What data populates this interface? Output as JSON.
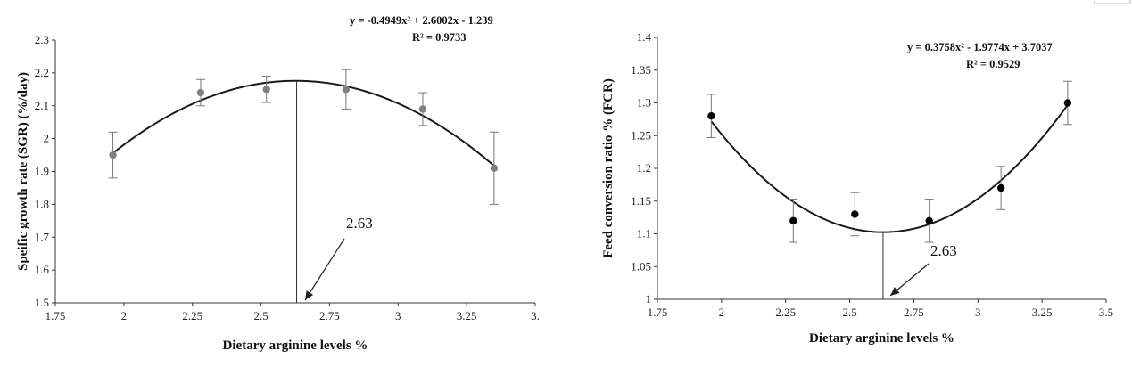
{
  "chart_data": [
    {
      "type": "scatter",
      "xlabel": "Dietary arginine levels %",
      "ylabel": "Speific growth rate (SGR) (%/day)",
      "xlim": [
        1.75,
        3.5
      ],
      "ylim": [
        1.5,
        2.3
      ],
      "x_ticks": [
        "1.75",
        "2",
        "2.25",
        "2.5",
        "2.75",
        "3",
        "3.25",
        "3."
      ],
      "y_ticks": [
        "1.5",
        "1.6",
        "1.7",
        "1.8",
        "1.9",
        "2",
        "2.1",
        "2.2",
        "2.3"
      ],
      "points": [
        {
          "x": 1.96,
          "y": 1.95,
          "err": 0.07
        },
        {
          "x": 2.28,
          "y": 2.14,
          "err": 0.04
        },
        {
          "x": 2.52,
          "y": 2.15,
          "err": 0.04
        },
        {
          "x": 2.81,
          "y": 2.15,
          "err": 0.06
        },
        {
          "x": 3.09,
          "y": 2.09,
          "err": 0.05
        },
        {
          "x": 3.35,
          "y": 1.91,
          "err": 0.11
        }
      ],
      "trendline": {
        "a": -0.4949,
        "b": 2.6002,
        "c": -1.2394,
        "x_range": [
          1.96,
          3.35
        ]
      },
      "equation": "y = -0.4949x² + 2.6002x - 1.239",
      "r_squared": "R² = 0.9733",
      "optimum_x": 2.63,
      "annotation": "2.63",
      "marker_color": "#808080",
      "line_color": "#1a1a1a"
    },
    {
      "type": "scatter",
      "xlabel": "Dietary arginine levels %",
      "ylabel": "Feed conversion ratio % (FCR)",
      "xlim": [
        1.75,
        3.5
      ],
      "ylim": [
        1.0,
        1.4
      ],
      "x_ticks": [
        "1.75",
        "2",
        "2.25",
        "2.5",
        "2.75",
        "3",
        "3.25",
        "3.5"
      ],
      "y_ticks": [
        "1",
        "1.05",
        "1.1",
        "1.15",
        "1.2",
        "1.25",
        "1.3",
        "1.35",
        "1.4"
      ],
      "points": [
        {
          "x": 1.96,
          "y": 1.28,
          "err": 0.033
        },
        {
          "x": 2.28,
          "y": 1.12,
          "err": 0.033
        },
        {
          "x": 2.52,
          "y": 1.13,
          "err": 0.033
        },
        {
          "x": 2.81,
          "y": 1.12,
          "err": 0.033
        },
        {
          "x": 3.09,
          "y": 1.17,
          "err": 0.033
        },
        {
          "x": 3.35,
          "y": 1.3,
          "err": 0.033
        }
      ],
      "trendline": {
        "a": 0.3758,
        "b": -1.9774,
        "c": 3.7037,
        "x_range": [
          1.96,
          3.35
        ]
      },
      "equation": "y = 0.3758x² - 1.9774x + 3.7037",
      "r_squared": "R² = 0.9529",
      "optimum_x": 2.63,
      "annotation": "2.63",
      "marker_color": "#000000",
      "line_color": "#1a1a1a"
    }
  ]
}
